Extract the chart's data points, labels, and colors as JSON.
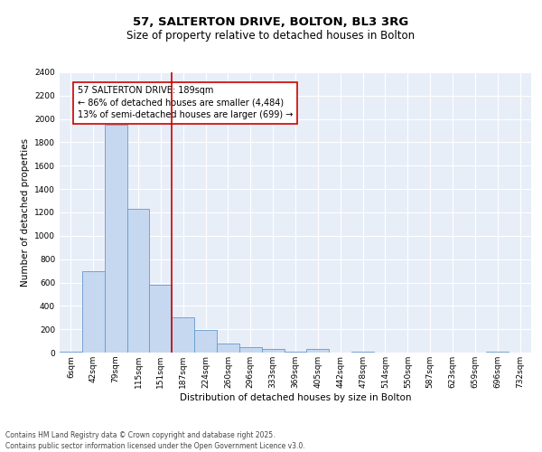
{
  "title_line1": "57, SALTERTON DRIVE, BOLTON, BL3 3RG",
  "title_line2": "Size of property relative to detached houses in Bolton",
  "xlabel": "Distribution of detached houses by size in Bolton",
  "ylabel": "Number of detached properties",
  "categories": [
    "6sqm",
    "42sqm",
    "79sqm",
    "115sqm",
    "151sqm",
    "187sqm",
    "224sqm",
    "260sqm",
    "296sqm",
    "333sqm",
    "369sqm",
    "405sqm",
    "442sqm",
    "478sqm",
    "514sqm",
    "550sqm",
    "587sqm",
    "623sqm",
    "659sqm",
    "696sqm",
    "732sqm"
  ],
  "values": [
    10,
    700,
    1950,
    1230,
    580,
    305,
    195,
    80,
    45,
    30,
    10,
    30,
    0,
    10,
    0,
    0,
    0,
    0,
    0,
    10,
    0
  ],
  "bar_color": "#c5d8f0",
  "bar_edge_color": "#6699cc",
  "vline_color": "#cc0000",
  "annotation_text": "57 SALTERTON DRIVE: 189sqm\n← 86% of detached houses are smaller (4,484)\n13% of semi-detached houses are larger (699) →",
  "annotation_box_color": "#ffffff",
  "annotation_box_edge": "#cc0000",
  "ylim": [
    0,
    2400
  ],
  "yticks": [
    0,
    200,
    400,
    600,
    800,
    1000,
    1200,
    1400,
    1600,
    1800,
    2000,
    2200,
    2400
  ],
  "bg_color": "#e8eef8",
  "grid_color": "#ffffff",
  "footer_text": "Contains HM Land Registry data © Crown copyright and database right 2025.\nContains public sector information licensed under the Open Government Licence v3.0.",
  "title_fontsize": 9.5,
  "subtitle_fontsize": 8.5,
  "axis_label_fontsize": 7.5,
  "tick_fontsize": 6.5,
  "annotation_fontsize": 7,
  "footer_fontsize": 5.5
}
